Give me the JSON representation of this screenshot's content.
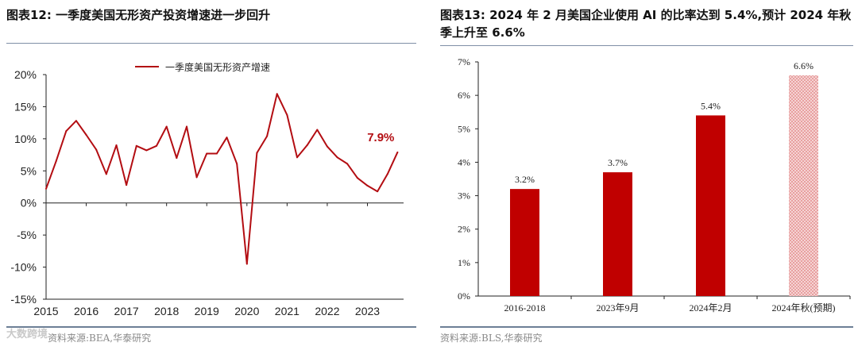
{
  "left": {
    "title": "图表12:  一季度美国无形资产投资增速进一步回升",
    "source": "资料来源:BEA,华泰研究",
    "watermark": "大数跨境",
    "chart_data": {
      "type": "line",
      "title": "",
      "legend": "一季度美国无形资产增速",
      "legend_position": "top-right",
      "color": "#b30d12",
      "x_ticks": [
        "2015",
        "2016",
        "2017",
        "2018",
        "2019",
        "2020",
        "2021",
        "2022",
        "2023"
      ],
      "y_ticks": [
        "20%",
        "15%",
        "10%",
        "5%",
        "0%",
        "-5%",
        "-10%",
        "-15%"
      ],
      "ylim": [
        -15,
        20
      ],
      "xlim": [
        2015,
        2023.9
      ],
      "annotation": {
        "text": "7.9%",
        "x": 2023.75,
        "y": 7.9
      },
      "x": [
        2015,
        2015.25,
        2015.5,
        2015.75,
        2016,
        2016.25,
        2016.5,
        2016.75,
        2017,
        2017.25,
        2017.5,
        2017.75,
        2018,
        2018.25,
        2018.5,
        2018.75,
        2019,
        2019.25,
        2019.5,
        2019.75,
        2020,
        2020.25,
        2020.5,
        2020.75,
        2021,
        2021.25,
        2021.5,
        2021.75,
        2022,
        2022.25,
        2022.5,
        2022.75,
        2023,
        2023.25,
        2023.5,
        2023.75
      ],
      "values": [
        2.2,
        6.5,
        11.2,
        12.8,
        10.6,
        8.3,
        4.5,
        9.0,
        2.8,
        8.9,
        8.2,
        8.9,
        11.9,
        7.0,
        11.9,
        4.0,
        7.7,
        7.7,
        10.2,
        6.1,
        -9.5,
        7.8,
        10.4,
        17.0,
        13.7,
        7.1,
        9.0,
        11.4,
        8.8,
        7.1,
        6.1,
        3.9,
        2.7,
        1.8,
        4.5,
        7.9
      ]
    }
  },
  "right": {
    "title": "图表13:  2024 年 2 月美国企业使用 AI 的比率达到 5.4%,预计 2024 年秋季上升至 6.6%",
    "source": "资料来源:BLS,华泰研究",
    "chart_data": {
      "type": "bar",
      "title": "",
      "categories": [
        "2016-2018",
        "2023年9月",
        "2024年2月",
        "2024年秋(预期)"
      ],
      "values": [
        3.2,
        3.7,
        5.4,
        6.6
      ],
      "data_labels": [
        "3.2%",
        "3.7%",
        "5.4%",
        "6.6%"
      ],
      "y_ticks": [
        "7%",
        "6%",
        "5%",
        "4%",
        "3%",
        "2%",
        "1%",
        "0%"
      ],
      "ylim": [
        0,
        7
      ],
      "bar_color": "#c00000",
      "forecast_fill": "#e8a0a0",
      "forecast_index": 3
    }
  }
}
